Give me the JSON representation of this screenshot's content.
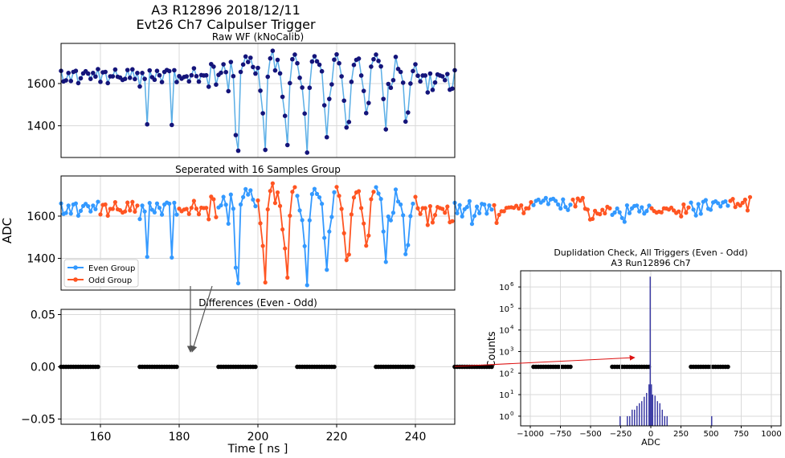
{
  "figure": {
    "title_line1": "A3 R12896 2018/12/11",
    "title_line2": "Evt26 Ch7 Calpulser Trigger",
    "shared_ylabel": "ADC"
  },
  "colors": {
    "raw_line": "#5aaee6",
    "raw_marker": "#14147a",
    "even": "#3399ff",
    "odd": "#ff5522",
    "diff": "#000000",
    "hist": "#3f3fa6",
    "arrow_red": "#dd1111",
    "arrow_gray": "#555555",
    "grid": "#d9d9d9"
  },
  "chart_data": [
    {
      "id": "raw",
      "type": "line",
      "title": "Raw WF (kNoCalib)",
      "xlim": [
        150,
        250
      ],
      "ylim": [
        1250,
        1790
      ],
      "yticks": [
        1400,
        1600
      ],
      "grid": true,
      "x_start": 150.0,
      "x_step": 0.625,
      "y": [
        1660,
        1610,
        1615,
        1650,
        1612,
        1655,
        1660,
        1602,
        1625,
        1648,
        1658,
        1647,
        1622,
        1650,
        1633,
        1668,
        1608,
        1653,
        1655,
        1602,
        1634,
        1634,
        1666,
        1632,
        1628,
        1617,
        1622,
        1664,
        1627,
        1667,
        1621,
        1650,
        1586,
        1650,
        1622,
        1407,
        1662,
        1630,
        1618,
        1660,
        1639,
        1607,
        1655,
        1664,
        1659,
        1404,
        1663,
        1607,
        1635,
        1623,
        1631,
        1634,
        1610,
        1639,
        1672,
        1635,
        1609,
        1640,
        1638,
        1639,
        1585,
        1692,
        1680,
        1595,
        1641,
        1651,
        1691,
        1654,
        1564,
        1702,
        1635,
        1356,
        1282,
        1655,
        1690,
        1728,
        1702,
        1722,
        1678,
        1647,
        1674,
        1566,
        1459,
        1286,
        1632,
        1719,
        1755,
        1662,
        1712,
        1648,
        1537,
        1447,
        1309,
        1602,
        1715,
        1737,
        1696,
        1627,
        1581,
        1458,
        1273,
        1580,
        1704,
        1729,
        1705,
        1689,
        1658,
        1497,
        1346,
        1527,
        1596,
        1713,
        1738,
        1696,
        1634,
        1519,
        1392,
        1418,
        1608,
        1688,
        1712,
        1718,
        1638,
        1565,
        1460,
        1508,
        1680,
        1715,
        1737,
        1707,
        1681,
        1527,
        1383,
        1598,
        1580,
        1616,
        1726,
        1669,
        1655,
        1604,
        1420,
        1463,
        1600,
        1659,
        1691,
        1637,
        1610,
        1638,
        1638,
        1558,
        1647,
        1570,
        1605,
        1643,
        1638,
        1634,
        1616,
        1645,
        1571,
        1576,
        1663,
        1614,
        1652,
        1599,
        1633,
        1643,
        1671,
        1563,
        1601,
        1645,
        1614,
        1658,
        1655,
        1612,
        1651,
        1631,
        1652,
        1568,
        1606,
        1623,
        1623,
        1639,
        1641,
        1642,
        1639,
        1649,
        1636,
        1651,
        1614,
        1637,
        1637,
        1666,
        1652,
        1672,
        1678,
        1664,
        1673,
        1686,
        1657,
        1679,
        1682,
        1672,
        1655,
        1636,
        1679,
        1643,
        1629,
        1654,
        1678,
        1646,
        1683,
        1673,
        1686,
        1635,
        1631,
        1584,
        1587,
        1625,
        1612,
        1609,
        1630,
        1613,
        1644,
        1637,
        1606,
        1617,
        1636,
        1618,
        1591,
        1573,
        1651,
        1614,
        1637,
        1648,
        1650,
        1622,
        1642,
        1612,
        1624,
        1650,
        1637,
        1624,
        1617,
        1621,
        1618,
        1637,
        1636,
        1631,
        1640,
        1627,
        1615,
        1622,
        1599,
        1655,
        1616,
        1641,
        1664,
        1631,
        1603,
        1657,
        1611,
        1668,
        1676,
        1635,
        1630,
        1665,
        1670,
        1661,
        1646,
        1665,
        1670,
        1649,
        1672,
        1681,
        1643,
        1658,
        1650,
        1663,
        1678,
        1627,
        1690
      ]
    },
    {
      "id": "split",
      "type": "line",
      "title": "Seperated with 16 Samples Group",
      "xlim": [
        150,
        250
      ],
      "ylim": [
        1250,
        1790
      ],
      "yticks": [
        1400,
        1600
      ],
      "grid": true,
      "group_size": 16,
      "legend": {
        "placement": "lower-left",
        "entries": [
          "Even Group",
          "Odd Group"
        ]
      }
    },
    {
      "id": "diff",
      "type": "scatter",
      "title": "Differences (Even - Odd)",
      "xlabel": "Time [ ns ]",
      "xlim": [
        150,
        250
      ],
      "ylim": [
        -0.055,
        0.055
      ],
      "yticks": [
        -0.05,
        0.0,
        0.05
      ],
      "ytick_labels": [
        "−0.05",
        "0.00",
        "0.05"
      ],
      "xticks": [
        160,
        180,
        200,
        220,
        240
      ],
      "grid": true,
      "value": 0.0
    },
    {
      "id": "hist",
      "type": "bar",
      "title_line1": "Duplidation Check, All Triggers (Even - Odd)",
      "title_line2": "A3 Run12896 Ch7",
      "xlabel": "ADC",
      "ylabel": "Counts",
      "xlim": [
        -1080,
        1080
      ],
      "xticks": [
        -1000,
        -750,
        -500,
        -250,
        0,
        250,
        500,
        750,
        1000
      ],
      "xtick_labels": [
        "−1000",
        "−750",
        "−500",
        "−250",
        "0",
        "250",
        "500",
        "750",
        "1000"
      ],
      "ylog": true,
      "ylim_exp": [
        -0.45,
        6.75
      ],
      "ytick_exps": [
        0,
        1,
        2,
        3,
        4,
        5,
        6
      ],
      "grid": true,
      "bin_width": 10,
      "bins": [
        {
          "x": -255,
          "count": 1
        },
        {
          "x": -195,
          "count": 1
        },
        {
          "x": -175,
          "count": 1
        },
        {
          "x": -155,
          "count": 2
        },
        {
          "x": -135,
          "count": 2
        },
        {
          "x": -115,
          "count": 3
        },
        {
          "x": -95,
          "count": 4
        },
        {
          "x": -75,
          "count": 5
        },
        {
          "x": -55,
          "count": 8
        },
        {
          "x": -35,
          "count": 12
        },
        {
          "x": -15,
          "count": 30
        },
        {
          "x": -5,
          "count": 3000000
        },
        {
          "x": 5,
          "count": 30
        },
        {
          "x": 15,
          "count": 10
        },
        {
          "x": 35,
          "count": 9
        },
        {
          "x": 55,
          "count": 5
        },
        {
          "x": 75,
          "count": 4
        },
        {
          "x": 95,
          "count": 2
        },
        {
          "x": 115,
          "count": 1
        },
        {
          "x": 135,
          "count": 1
        },
        {
          "x": 505,
          "count": 1
        }
      ]
    }
  ]
}
